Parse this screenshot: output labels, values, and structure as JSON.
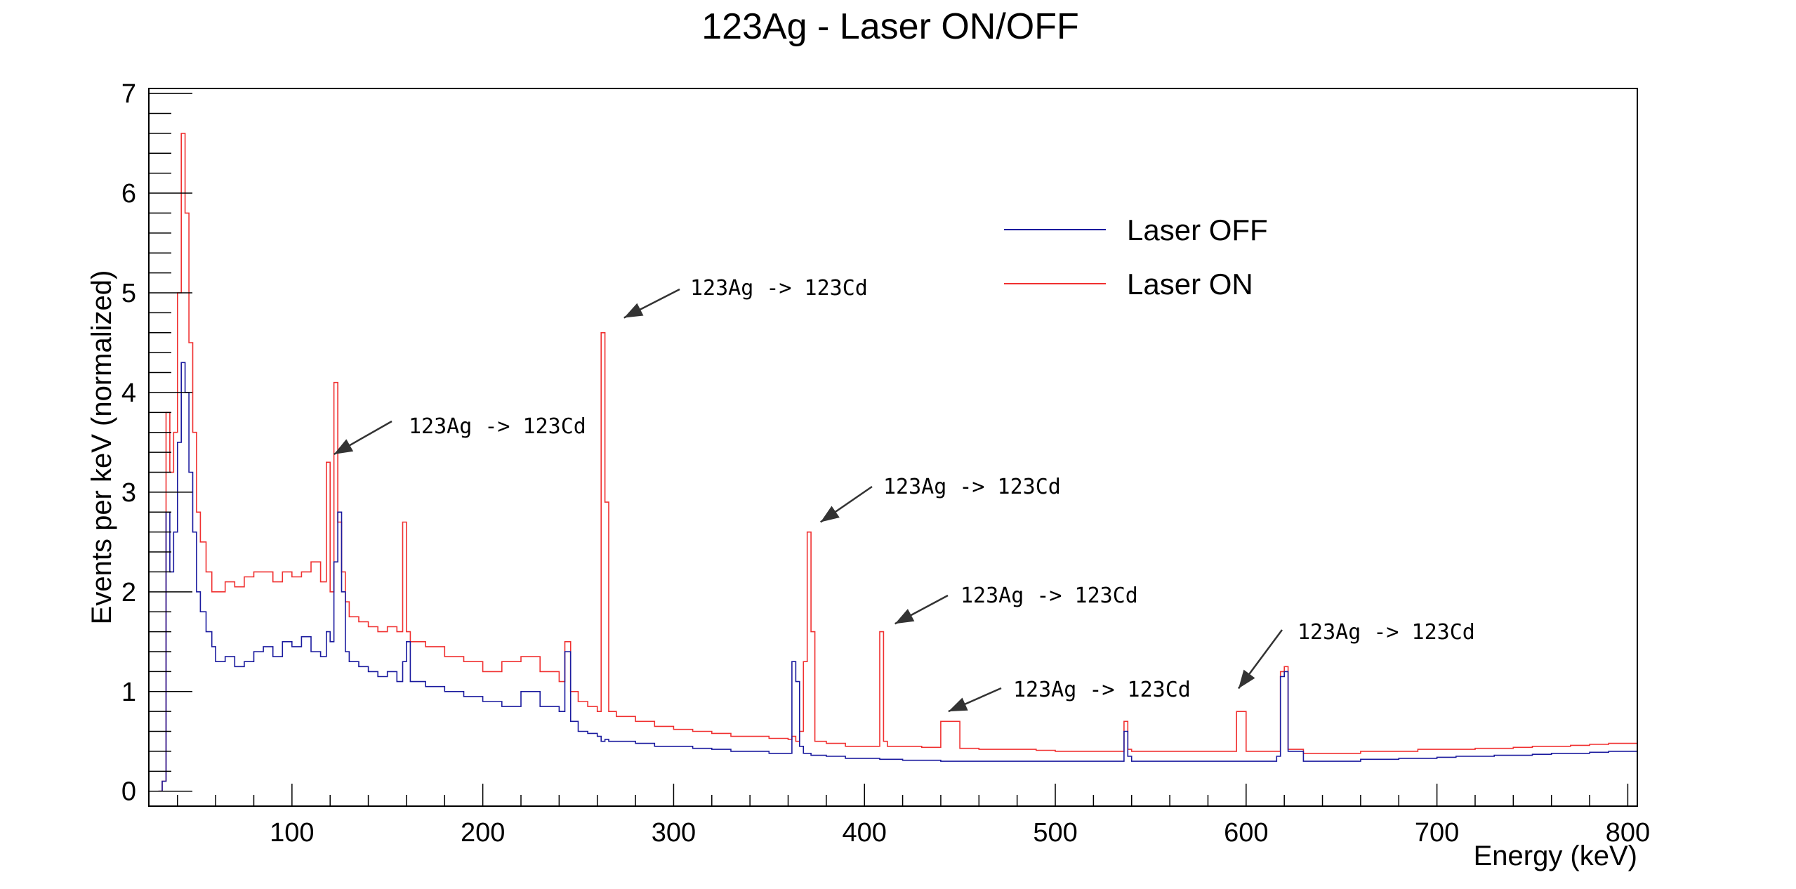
{
  "chart_data": {
    "type": "line",
    "title": "123Ag - Laser ON/OFF",
    "xlabel": "Energy (keV)",
    "ylabel": "Events per keV (normalized)",
    "xlim": [
      25,
      805
    ],
    "ylim": [
      -0.15,
      7.05
    ],
    "x_ticks": [
      100,
      200,
      300,
      400,
      500,
      600,
      700,
      800
    ],
    "y_ticks": [
      0,
      1,
      2,
      3,
      4,
      5,
      6,
      7
    ],
    "legend_position": "top-right",
    "colors": {
      "laser_off": "#1a1a9e",
      "laser_on": "#f03030",
      "axis": "#000000",
      "arrow": "#333333"
    },
    "series": [
      {
        "name": "Laser OFF",
        "color": "#1a1a9e",
        "x": [
          30,
          32,
          34,
          36,
          38,
          40,
          42,
          44,
          46,
          48,
          50,
          52,
          55,
          58,
          60,
          65,
          70,
          75,
          80,
          85,
          90,
          95,
          100,
          105,
          110,
          115,
          118,
          120,
          122,
          124,
          126,
          128,
          130,
          135,
          140,
          145,
          150,
          155,
          158,
          160,
          162,
          165,
          170,
          180,
          190,
          200,
          210,
          220,
          230,
          240,
          243,
          246,
          250,
          255,
          260,
          262,
          264,
          266,
          270,
          280,
          290,
          300,
          310,
          320,
          330,
          340,
          350,
          360,
          362,
          364,
          366,
          368,
          370,
          372,
          374,
          380,
          390,
          400,
          408,
          410,
          412,
          420,
          430,
          440,
          450,
          460,
          470,
          480,
          490,
          500,
          510,
          520,
          530,
          536,
          538,
          540,
          550,
          560,
          570,
          580,
          590,
          595,
          600,
          610,
          616,
          618,
          620,
          622,
          630,
          640,
          650,
          660,
          670,
          680,
          690,
          700,
          710,
          720,
          730,
          740,
          750,
          760,
          770,
          780,
          790,
          800,
          805
        ],
        "y": [
          0,
          0.1,
          2.8,
          2.2,
          2.6,
          3.5,
          4.3,
          4.0,
          3.2,
          2.6,
          2.0,
          1.8,
          1.6,
          1.45,
          1.3,
          1.35,
          1.25,
          1.3,
          1.4,
          1.45,
          1.35,
          1.5,
          1.45,
          1.55,
          1.4,
          1.35,
          1.6,
          1.5,
          2.3,
          2.8,
          2.0,
          1.4,
          1.3,
          1.25,
          1.2,
          1.15,
          1.2,
          1.1,
          1.3,
          1.5,
          1.1,
          1.1,
          1.05,
          1.0,
          0.95,
          0.9,
          0.85,
          1.0,
          0.85,
          0.8,
          1.4,
          0.7,
          0.6,
          0.58,
          0.55,
          0.5,
          0.52,
          0.5,
          0.5,
          0.48,
          0.45,
          0.45,
          0.43,
          0.42,
          0.4,
          0.4,
          0.38,
          0.38,
          1.3,
          1.1,
          0.45,
          0.38,
          0.38,
          0.36,
          0.36,
          0.35,
          0.33,
          0.33,
          0.32,
          0.32,
          0.32,
          0.31,
          0.31,
          0.3,
          0.3,
          0.3,
          0.3,
          0.3,
          0.3,
          0.3,
          0.3,
          0.3,
          0.3,
          0.6,
          0.35,
          0.3,
          0.3,
          0.3,
          0.3,
          0.3,
          0.3,
          0.3,
          0.3,
          0.3,
          0.35,
          1.15,
          1.2,
          0.4,
          0.3,
          0.3,
          0.3,
          0.32,
          0.32,
          0.33,
          0.33,
          0.34,
          0.35,
          0.35,
          0.36,
          0.36,
          0.37,
          0.38,
          0.38,
          0.39,
          0.4,
          0.4,
          0.4
        ]
      },
      {
        "name": "Laser ON",
        "color": "#f03030",
        "x": [
          30,
          32,
          34,
          36,
          38,
          40,
          42,
          44,
          46,
          48,
          50,
          52,
          55,
          58,
          60,
          65,
          70,
          75,
          80,
          85,
          90,
          95,
          100,
          105,
          110,
          115,
          118,
          120,
          122,
          124,
          126,
          128,
          130,
          135,
          140,
          145,
          150,
          155,
          158,
          160,
          162,
          165,
          170,
          180,
          190,
          200,
          210,
          220,
          230,
          240,
          243,
          246,
          250,
          255,
          260,
          262,
          264,
          266,
          270,
          280,
          290,
          300,
          310,
          320,
          330,
          340,
          350,
          360,
          362,
          364,
          366,
          368,
          370,
          372,
          374,
          380,
          390,
          400,
          408,
          410,
          412,
          420,
          430,
          440,
          450,
          460,
          470,
          480,
          490,
          500,
          510,
          520,
          530,
          536,
          538,
          540,
          550,
          560,
          570,
          580,
          590,
          595,
          600,
          610,
          616,
          618,
          620,
          622,
          630,
          640,
          650,
          660,
          670,
          680,
          690,
          700,
          710,
          720,
          730,
          740,
          750,
          760,
          770,
          780,
          790,
          800,
          805
        ],
        "y": [
          0,
          0.1,
          3.8,
          3.2,
          3.6,
          5.0,
          6.6,
          5.8,
          4.5,
          3.6,
          2.8,
          2.5,
          2.2,
          2.0,
          2.0,
          2.1,
          2.05,
          2.15,
          2.2,
          2.2,
          2.1,
          2.2,
          2.15,
          2.2,
          2.3,
          2.1,
          3.3,
          2.0,
          4.1,
          2.7,
          2.2,
          1.9,
          1.75,
          1.7,
          1.65,
          1.6,
          1.65,
          1.6,
          2.7,
          1.6,
          1.5,
          1.5,
          1.45,
          1.35,
          1.3,
          1.2,
          1.3,
          1.35,
          1.2,
          1.1,
          1.5,
          1.0,
          0.9,
          0.85,
          0.8,
          4.6,
          2.9,
          0.8,
          0.75,
          0.7,
          0.65,
          0.62,
          0.6,
          0.58,
          0.55,
          0.55,
          0.53,
          0.52,
          0.55,
          0.5,
          0.6,
          1.3,
          2.6,
          1.6,
          0.5,
          0.48,
          0.45,
          0.45,
          1.6,
          0.5,
          0.45,
          0.45,
          0.44,
          0.7,
          0.43,
          0.42,
          0.42,
          0.42,
          0.41,
          0.4,
          0.4,
          0.4,
          0.4,
          0.7,
          0.42,
          0.4,
          0.4,
          0.4,
          0.4,
          0.4,
          0.4,
          0.8,
          0.4,
          0.4,
          0.4,
          1.2,
          1.25,
          0.42,
          0.38,
          0.38,
          0.38,
          0.4,
          0.4,
          0.4,
          0.42,
          0.42,
          0.42,
          0.43,
          0.43,
          0.44,
          0.45,
          0.45,
          0.46,
          0.47,
          0.48,
          0.48,
          0.5
        ]
      }
    ],
    "annotations": [
      {
        "text": "123Ag -> 123Cd",
        "x": 122,
        "y": 3.38
      },
      {
        "text": "123Ag -> 123Cd",
        "x": 274,
        "y": 4.75
      },
      {
        "text": "123Ag -> 123Cd",
        "x": 377,
        "y": 2.7
      },
      {
        "text": "123Ag -> 123Cd",
        "x": 416,
        "y": 1.68
      },
      {
        "text": "123Ag -> 123Cd",
        "x": 444,
        "y": 0.8
      },
      {
        "text": "123Ag -> 123Cd",
        "x": 596,
        "y": 1.03
      }
    ]
  }
}
